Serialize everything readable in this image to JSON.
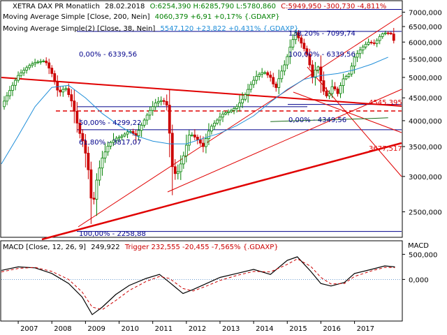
{
  "header": {
    "instrument": "XETRA DAX PR Monatlich",
    "date": "28.02.2018",
    "ohlc": "O:6254,390 H:6285,790 L:5780,860",
    "close": "C:5949,950 -300,730 -4,811%",
    "sma200_name": "Moving Average Simple [Close, 200, Nein]",
    "sma200_val": "4060,379 +6,91 +0,17% {.GDAXP}",
    "sma38_name": "Moving Average Simple(2) [Close, 38, Nein]",
    "sma38_val": "5547,120 +23,822 +0,431% {.GDAXP}",
    "macd_name": "MACD [Close, 12, 26, 9]",
    "macd_val": "249,922",
    "macd_trigger": "Trigger 232,555 -20,455 -7,565% {.GDAXP}"
  },
  "fib_labels": {
    "f138": "138,20% - 7099,74",
    "f0_left": "0,00% - 6339,56",
    "f100_right": "100,00% - 6339,56",
    "f50": "50,00% - 4299,22",
    "f618": "61,80% - 3817,07",
    "f0_right": "0,00% - 4349,56",
    "f100_left": "100,00% - 2258,88",
    "lvl4545": "4545,395",
    "lvl3677": "3677,517"
  },
  "macd_axis_title": "MACD",
  "colors": {
    "up": "#008000",
    "down": "#cc0000",
    "sma38": "#1f8ed9",
    "sma200": "#1a6b1a",
    "fib": "#00008b",
    "trend": "#e00000",
    "grid_text": "#000000"
  },
  "chart_data": {
    "type": "candlestick",
    "y_scale": "log",
    "price_ticks": [
      "2500,000",
      "3000,000",
      "3500,000",
      "4000,000",
      "4500,000",
      "5000,000",
      "5500,000",
      "6000,000",
      "6500,000",
      "7000,000"
    ],
    "x_ticks": [
      "2007",
      "2008",
      "2009",
      "2010",
      "2011",
      "2012",
      "2013",
      "2014",
      "2015",
      "2016",
      "2017"
    ],
    "macd_ticks": [
      "500,000",
      "0,000"
    ],
    "ylim": [
      2200,
      7400
    ],
    "fib_levels": [
      7099.74,
      6339.56,
      4299.22,
      3817.07,
      4349.56,
      2258.88
    ],
    "price_path": [
      [
        2006.5,
        4300
      ],
      [
        2006.8,
        4750
      ],
      [
        2007.0,
        5050
      ],
      [
        2007.3,
        5300
      ],
      [
        2007.5,
        5400
      ],
      [
        2007.8,
        5450
      ],
      [
        2008.0,
        5100
      ],
      [
        2008.2,
        4600
      ],
      [
        2008.4,
        4750
      ],
      [
        2008.6,
        4400
      ],
      [
        2008.8,
        3800
      ],
      [
        2008.95,
        3550
      ],
      [
        2009.1,
        3050
      ],
      [
        2009.2,
        2500
      ],
      [
        2009.35,
        3000
      ],
      [
        2009.5,
        3300
      ],
      [
        2009.7,
        3550
      ],
      [
        2009.9,
        3650
      ],
      [
        2010.1,
        3700
      ],
      [
        2010.3,
        3800
      ],
      [
        2010.5,
        3700
      ],
      [
        2010.7,
        3950
      ],
      [
        2010.9,
        4200
      ],
      [
        2011.1,
        4400
      ],
      [
        2011.3,
        4450
      ],
      [
        2011.45,
        4300
      ],
      [
        2011.55,
        3200
      ],
      [
        2011.7,
        3000
      ],
      [
        2011.9,
        3300
      ],
      [
        2012.1,
        3750
      ],
      [
        2012.3,
        3650
      ],
      [
        2012.5,
        3500
      ],
      [
        2012.7,
        3850
      ],
      [
        2012.9,
        4000
      ],
      [
        2013.1,
        4150
      ],
      [
        2013.3,
        4200
      ],
      [
        2013.5,
        4300
      ],
      [
        2013.7,
        4500
      ],
      [
        2013.9,
        4800
      ],
      [
        2014.1,
        5050
      ],
      [
        2014.3,
        5150
      ],
      [
        2014.5,
        5000
      ],
      [
        2014.65,
        4700
      ],
      [
        2014.8,
        5100
      ],
      [
        2014.95,
        5400
      ],
      [
        2015.1,
        5900
      ],
      [
        2015.25,
        6300
      ],
      [
        2015.45,
        5900
      ],
      [
        2015.6,
        5600
      ],
      [
        2015.75,
        5000
      ],
      [
        2015.9,
        5350
      ],
      [
        2016.05,
        4700
      ],
      [
        2016.2,
        4500
      ],
      [
        2016.35,
        4800
      ],
      [
        2016.5,
        4600
      ],
      [
        2016.65,
        4950
      ],
      [
        2016.85,
        5100
      ],
      [
        2017.0,
        5550
      ],
      [
        2017.2,
        5800
      ],
      [
        2017.4,
        6000
      ],
      [
        2017.6,
        5950
      ],
      [
        2017.8,
        6250
      ],
      [
        2017.95,
        6300
      ],
      [
        2018.1,
        6250
      ],
      [
        2018.2,
        5950
      ]
    ],
    "sma38": [
      [
        2006.5,
        3200
      ],
      [
        2007.0,
        3700
      ],
      [
        2007.5,
        4300
      ],
      [
        2008.0,
        4750
      ],
      [
        2008.5,
        4800
      ],
      [
        2009.0,
        4500
      ],
      [
        2009.5,
        4150
      ],
      [
        2010.0,
        3900
      ],
      [
        2010.5,
        3700
      ],
      [
        2011.0,
        3600
      ],
      [
        2011.5,
        3550
      ],
      [
        2012.0,
        3550
      ],
      [
        2012.5,
        3650
      ],
      [
        2013.0,
        3750
      ],
      [
        2013.5,
        3900
      ],
      [
        2014.0,
        4100
      ],
      [
        2014.5,
        4400
      ],
      [
        2015.0,
        4700
      ],
      [
        2015.5,
        4950
      ],
      [
        2016.0,
        5050
      ],
      [
        2016.5,
        5100
      ],
      [
        2017.0,
        5200
      ],
      [
        2017.5,
        5350
      ],
      [
        2018.0,
        5550
      ]
    ],
    "sma200": [
      [
        2014.5,
        3980
      ],
      [
        2015.5,
        4005
      ],
      [
        2016.5,
        4025
      ],
      [
        2017.5,
        4045
      ],
      [
        2018.0,
        4060
      ]
    ],
    "macd": [
      [
        2006.5,
        180
      ],
      [
        2007.0,
        250
      ],
      [
        2007.5,
        230
      ],
      [
        2008.0,
        120
      ],
      [
        2008.5,
        -80
      ],
      [
        2008.9,
        -350
      ],
      [
        2009.2,
        -700
      ],
      [
        2009.5,
        -550
      ],
      [
        2009.9,
        -300
      ],
      [
        2010.3,
        -120
      ],
      [
        2010.8,
        20
      ],
      [
        2011.2,
        100
      ],
      [
        2011.5,
        -60
      ],
      [
        2011.9,
        -280
      ],
      [
        2012.2,
        -200
      ],
      [
        2012.6,
        -80
      ],
      [
        2013.0,
        40
      ],
      [
        2013.5,
        120
      ],
      [
        2014.0,
        200
      ],
      [
        2014.5,
        100
      ],
      [
        2015.0,
        380
      ],
      [
        2015.3,
        450
      ],
      [
        2015.7,
        160
      ],
      [
        2016.0,
        -80
      ],
      [
        2016.3,
        -130
      ],
      [
        2016.7,
        -60
      ],
      [
        2017.0,
        120
      ],
      [
        2017.5,
        200
      ],
      [
        2017.9,
        270
      ],
      [
        2018.2,
        250
      ]
    ],
    "trigger": [
      [
        2006.5,
        150
      ],
      [
        2007.0,
        220
      ],
      [
        2007.5,
        240
      ],
      [
        2008.0,
        160
      ],
      [
        2008.5,
        0
      ],
      [
        2008.9,
        -250
      ],
      [
        2009.2,
        -550
      ],
      [
        2009.5,
        -600
      ],
      [
        2009.9,
        -420
      ],
      [
        2010.3,
        -220
      ],
      [
        2010.8,
        -40
      ],
      [
        2011.2,
        60
      ],
      [
        2011.5,
        20
      ],
      [
        2011.9,
        -180
      ],
      [
        2012.2,
        -230
      ],
      [
        2012.6,
        -130
      ],
      [
        2013.0,
        -20
      ],
      [
        2013.5,
        80
      ],
      [
        2014.0,
        160
      ],
      [
        2014.5,
        150
      ],
      [
        2015.0,
        300
      ],
      [
        2015.3,
        410
      ],
      [
        2015.7,
        260
      ],
      [
        2016.0,
        40
      ],
      [
        2016.3,
        -90
      ],
      [
        2016.7,
        -80
      ],
      [
        2017.0,
        60
      ],
      [
        2017.5,
        170
      ],
      [
        2017.9,
        240
      ],
      [
        2018.2,
        233
      ]
    ],
    "macd_ylim": [
      -800,
      700
    ]
  }
}
